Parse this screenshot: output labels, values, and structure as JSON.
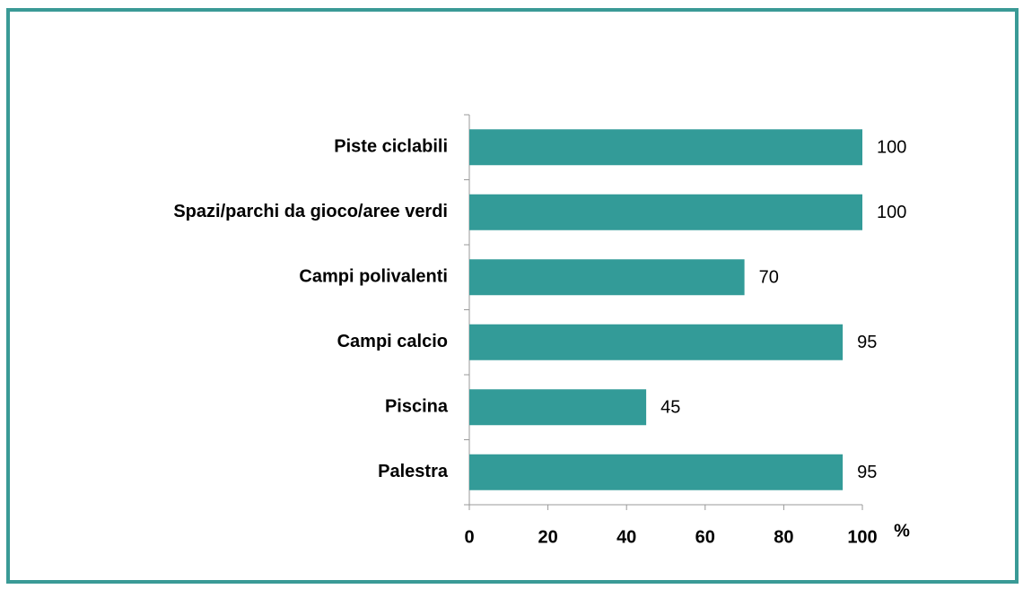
{
  "chart_data": {
    "type": "bar",
    "orientation": "horizontal",
    "categories": [
      "Piste ciclabili",
      "Spazi/parchi da gioco/aree verdi",
      "Campi polivalenti",
      "Campi calcio",
      "Piscina",
      "Palestra"
    ],
    "values": [
      100,
      100,
      70,
      95,
      45,
      95
    ],
    "color": "#339b98",
    "xlim": [
      0,
      100
    ],
    "xticks": [
      0,
      20,
      40,
      60,
      80,
      100
    ],
    "xlabel": "%",
    "grid": false
  }
}
